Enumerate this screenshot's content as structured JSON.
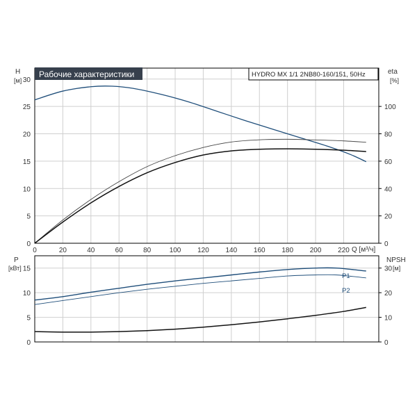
{
  "header": {
    "title": "Рабочие характеристики",
    "model": "HYDRO MX 1/1 2NB80-160/151, 50Hz"
  },
  "colors": {
    "blue": "#1f4e7a",
    "dark": "#111111",
    "title_bg": "#37404d",
    "grid": "#cfcfcf"
  },
  "chart_data": [
    {
      "type": "line",
      "x_label": "Q [м³/ч]",
      "xlim": [
        0,
        245
      ],
      "x_ticks": [
        0,
        20,
        40,
        60,
        80,
        100,
        120,
        140,
        160,
        180,
        200,
        220
      ],
      "y_left_label": "H",
      "y_left_unit": "[м]",
      "ylim_left": [
        0,
        32
      ],
      "y_left_ticks": [
        0,
        5,
        10,
        15,
        20,
        25,
        30
      ],
      "y_right_label": "eta",
      "y_right_unit": "[%]",
      "ylim_right": [
        0,
        128
      ],
      "y_right_ticks": [
        0,
        20,
        40,
        60,
        80,
        100
      ],
      "grid": true,
      "series": [
        {
          "axis": "left",
          "color": "#1f4e7a",
          "x": [
            0,
            20,
            40,
            55,
            70,
            90,
            110,
            130,
            150,
            170,
            190,
            210,
            225,
            236
          ],
          "y": [
            26.2,
            27.8,
            28.6,
            28.7,
            28.3,
            27.2,
            25.8,
            24.1,
            22.4,
            20.8,
            19.2,
            17.6,
            16.2,
            14.9
          ]
        },
        {
          "axis": "right",
          "color": "#444444",
          "x": [
            0,
            20,
            40,
            60,
            80,
            100,
            120,
            140,
            160,
            180,
            200,
            220,
            236
          ],
          "y": [
            0,
            17,
            32,
            45,
            56,
            64,
            70,
            74,
            75.6,
            76,
            75.5,
            74.8,
            73.8
          ]
        },
        {
          "axis": "right",
          "color": "#111111",
          "x": [
            0,
            20,
            40,
            60,
            80,
            100,
            120,
            140,
            160,
            180,
            200,
            220,
            236
          ],
          "y": [
            0,
            15.5,
            29.5,
            41.5,
            51.5,
            59,
            64.5,
            67.5,
            68.7,
            69,
            68.7,
            68,
            67
          ]
        }
      ]
    },
    {
      "type": "line",
      "y_left_label": "P",
      "y_left_unit": "[кВт]",
      "ylim_left": [
        0,
        17.5
      ],
      "y_left_ticks": [
        0,
        5,
        10,
        15
      ],
      "y_right_label": "NPSH",
      "y_right_unit": "[м]",
      "ylim_right": [
        0,
        35
      ],
      "y_right_ticks": [
        0,
        10,
        20,
        30
      ],
      "xlim": [
        0,
        245
      ],
      "grid": true,
      "series": [
        {
          "name": "P1",
          "axis": "left",
          "color": "#1f4e7a",
          "x": [
            0,
            20,
            40,
            60,
            80,
            100,
            120,
            140,
            160,
            180,
            200,
            215,
            236
          ],
          "y": [
            8.5,
            9.2,
            10.1,
            10.9,
            11.7,
            12.4,
            13.0,
            13.6,
            14.2,
            14.7,
            15.0,
            15.0,
            14.4
          ]
        },
        {
          "name": "P2",
          "axis": "left",
          "color": "#1f4e7a",
          "x": [
            0,
            20,
            40,
            60,
            80,
            100,
            120,
            140,
            160,
            180,
            200,
            215,
            236
          ],
          "y": [
            7.6,
            8.4,
            9.2,
            10.0,
            10.7,
            11.3,
            11.9,
            12.4,
            12.9,
            13.4,
            13.6,
            13.6,
            13.0
          ]
        },
        {
          "axis": "right",
          "color": "#111111",
          "x": [
            0,
            20,
            40,
            60,
            80,
            100,
            120,
            140,
            160,
            180,
            200,
            220,
            236
          ],
          "y": [
            4.2,
            4.0,
            4.0,
            4.2,
            4.6,
            5.2,
            6.0,
            7.0,
            8.1,
            9.4,
            10.8,
            12.4,
            14.0
          ]
        }
      ]
    }
  ]
}
